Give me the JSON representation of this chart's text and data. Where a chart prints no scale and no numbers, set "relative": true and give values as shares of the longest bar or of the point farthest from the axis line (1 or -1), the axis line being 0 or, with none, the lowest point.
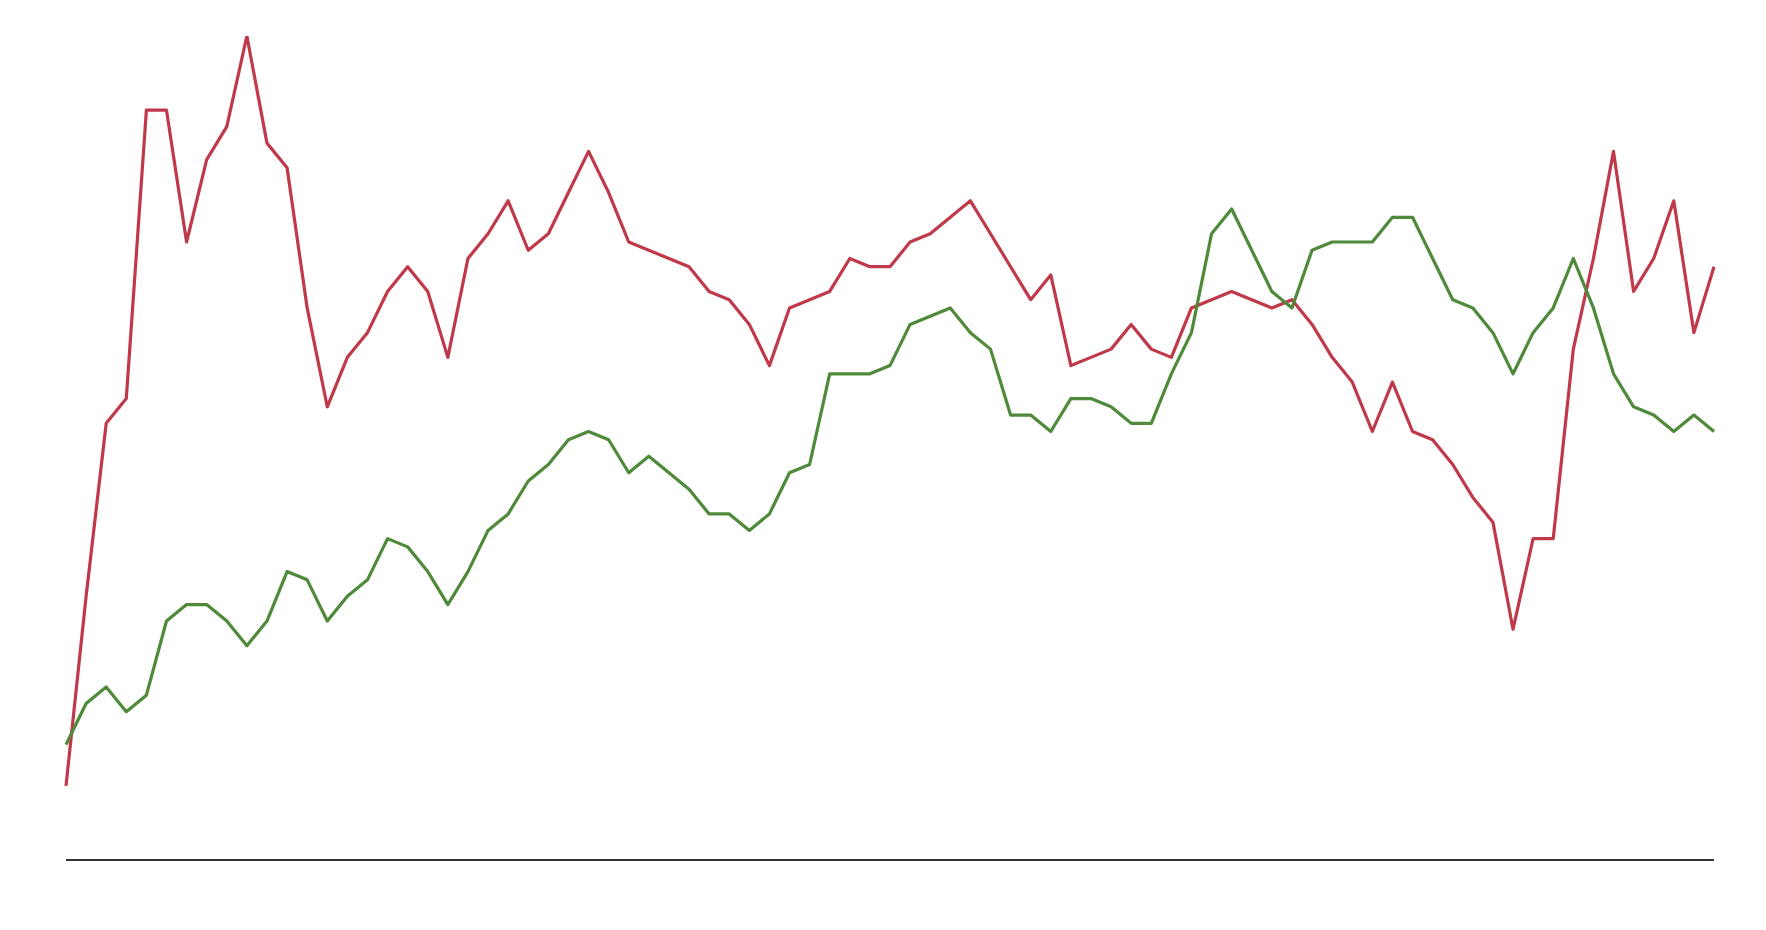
{
  "chart_data": {
    "type": "line",
    "relative": true,
    "marker": "none",
    "line_style": "solid",
    "categories": [
      null,
      null,
      null,
      null,
      null,
      null,
      null,
      null,
      null,
      null,
      null,
      null,
      null,
      null,
      null,
      null,
      null,
      null,
      null,
      null,
      null,
      null,
      null,
      null,
      null,
      null,
      null,
      null,
      null,
      null,
      null,
      null,
      null,
      null,
      null,
      null,
      null,
      null,
      null,
      null,
      null,
      null,
      null,
      null,
      null,
      null,
      null,
      null,
      null,
      null,
      null,
      null,
      null,
      null,
      null,
      null,
      null,
      null,
      null,
      null,
      null,
      null,
      null,
      null,
      null,
      null,
      null,
      null,
      null,
      null,
      null,
      null,
      null,
      null,
      null,
      null,
      null,
      null,
      null,
      null,
      null,
      null,
      null
    ],
    "series": [
      {
        "color": "#c0394b",
        "values": [
          0.09,
          0.32,
          0.53,
          0.56,
          0.91,
          0.91,
          0.75,
          0.85,
          0.89,
          1,
          0.87,
          0.84,
          0.67,
          0.55,
          0.61,
          0.64,
          0.69,
          0.72,
          0.69,
          0.61,
          0.73,
          0.76,
          0.8,
          0.74,
          0.76,
          0.81,
          0.86,
          0.81,
          0.75,
          0.74,
          0.73,
          0.72,
          0.69,
          0.68,
          0.65,
          0.6,
          0.67,
          0.68,
          0.69,
          0.73,
          0.72,
          0.72,
          0.75,
          0.76,
          0.78,
          0.8,
          0.76,
          0.72,
          0.68,
          0.71,
          0.6,
          0.61,
          0.62,
          0.65,
          0.62,
          0.61,
          0.67,
          0.68,
          0.69,
          0.68,
          0.67,
          0.68,
          0.65,
          0.61,
          0.58,
          0.52,
          0.58,
          0.52,
          0.51,
          0.48,
          0.44,
          0.41,
          0.28,
          0.39,
          0.39,
          0.62,
          0.73,
          0.86,
          0.69,
          0.73,
          0.8,
          0.64,
          0.72
        ]
      },
      {
        "color": "#4f8a3a",
        "values": [
          0.14,
          0.19,
          0.21,
          0.18,
          0.2,
          0.29,
          0.31,
          0.31,
          0.29,
          0.26,
          0.29,
          0.35,
          0.34,
          0.29,
          0.32,
          0.34,
          0.39,
          0.38,
          0.35,
          0.31,
          0.35,
          0.4,
          0.42,
          0.46,
          0.48,
          0.51,
          0.52,
          0.51,
          0.47,
          0.49,
          0.47,
          0.45,
          0.42,
          0.42,
          0.4,
          0.42,
          0.47,
          0.48,
          0.59,
          0.59,
          0.59,
          0.6,
          0.65,
          0.66,
          0.67,
          0.64,
          0.62,
          0.54,
          0.54,
          0.52,
          0.56,
          0.56,
          0.55,
          0.53,
          0.53,
          0.59,
          0.64,
          0.76,
          0.79,
          0.74,
          0.69,
          0.67,
          0.74,
          0.75,
          0.75,
          0.75,
          0.78,
          0.78,
          0.73,
          0.68,
          0.67,
          0.64,
          0.59,
          0.64,
          0.67,
          0.73,
          0.67,
          0.59,
          0.55,
          0.54,
          0.52,
          0.54,
          0.52
        ]
      }
    ]
  }
}
